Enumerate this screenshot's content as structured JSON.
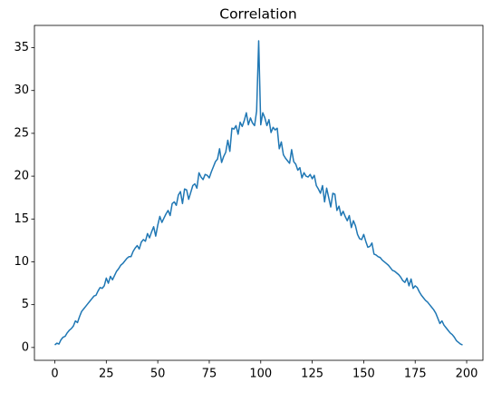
{
  "chart_data": {
    "type": "line",
    "title": "Correlation",
    "color": "#1f77b4",
    "x": [
      0,
      1,
      2,
      3,
      4,
      5,
      6,
      7,
      8,
      9,
      10,
      11,
      12,
      13,
      14,
      15,
      16,
      17,
      18,
      19,
      20,
      21,
      22,
      23,
      24,
      25,
      26,
      27,
      28,
      29,
      30,
      31,
      32,
      33,
      34,
      35,
      36,
      37,
      38,
      39,
      40,
      41,
      42,
      43,
      44,
      45,
      46,
      47,
      48,
      49,
      50,
      51,
      52,
      53,
      54,
      55,
      56,
      57,
      58,
      59,
      60,
      61,
      62,
      63,
      64,
      65,
      66,
      67,
      68,
      69,
      70,
      71,
      72,
      73,
      74,
      75,
      76,
      77,
      78,
      79,
      80,
      81,
      82,
      83,
      84,
      85,
      86,
      87,
      88,
      89,
      90,
      91,
      92,
      93,
      94,
      95,
      96,
      97,
      98,
      99,
      100,
      101,
      102,
      103,
      104,
      105,
      106,
      107,
      108,
      109,
      110,
      111,
      112,
      113,
      114,
      115,
      116,
      117,
      118,
      119,
      120,
      121,
      122,
      123,
      124,
      125,
      126,
      127,
      128,
      129,
      130,
      131,
      132,
      133,
      134,
      135,
      136,
      137,
      138,
      139,
      140,
      141,
      142,
      143,
      144,
      145,
      146,
      147,
      148,
      149,
      150,
      151,
      152,
      153,
      154,
      155,
      156,
      157,
      158,
      159,
      160,
      161,
      162,
      163,
      164,
      165,
      166,
      167,
      168,
      169,
      170,
      171,
      172,
      173,
      174,
      175,
      176,
      177,
      178,
      179,
      180,
      181,
      182,
      183,
      184,
      185,
      186,
      187,
      188,
      189,
      190,
      191,
      192,
      193,
      194,
      195,
      196,
      197,
      198
    ],
    "values": [
      0.3,
      0.5,
      0.4,
      0.9,
      1.2,
      1.3,
      1.7,
      2.0,
      2.2,
      2.5,
      3.1,
      2.9,
      3.6,
      4.2,
      4.5,
      4.8,
      5.1,
      5.4,
      5.7,
      6.0,
      6.1,
      6.6,
      7.0,
      6.9,
      7.2,
      8.1,
      7.5,
      8.3,
      7.9,
      8.4,
      8.9,
      9.2,
      9.6,
      9.8,
      10.1,
      10.4,
      10.6,
      10.6,
      11.2,
      11.6,
      11.9,
      11.5,
      12.3,
      12.6,
      12.4,
      13.3,
      12.8,
      13.5,
      14.1,
      13.0,
      14.3,
      15.3,
      14.6,
      15.1,
      15.6,
      16.0,
      15.4,
      16.8,
      17.0,
      16.6,
      17.8,
      18.2,
      16.8,
      18.5,
      18.4,
      17.3,
      18.1,
      18.9,
      19.1,
      18.6,
      20.4,
      19.9,
      19.6,
      20.2,
      20.1,
      19.8,
      20.5,
      21.1,
      21.7,
      22.0,
      23.2,
      21.6,
      22.3,
      22.8,
      24.2,
      22.9,
      25.6,
      25.5,
      25.9,
      24.9,
      26.3,
      25.8,
      26.5,
      27.4,
      26.0,
      26.8,
      26.2,
      25.9,
      27.6,
      35.8,
      26.0,
      27.4,
      26.8,
      25.9,
      26.6,
      25.1,
      25.7,
      25.4,
      25.6,
      23.2,
      24.0,
      22.5,
      22.1,
      21.8,
      21.5,
      23.1,
      21.7,
      21.4,
      20.7,
      21.0,
      19.8,
      20.4,
      20.0,
      19.9,
      20.2,
      19.7,
      20.1,
      18.9,
      18.5,
      18.0,
      18.9,
      17.0,
      18.6,
      17.5,
      16.4,
      18.0,
      17.9,
      16.0,
      16.5,
      15.4,
      15.9,
      15.3,
      14.8,
      15.4,
      14.0,
      14.8,
      14.2,
      13.2,
      12.7,
      12.6,
      13.2,
      12.4,
      11.7,
      11.8,
      12.2,
      10.9,
      10.8,
      10.6,
      10.5,
      10.2,
      10.0,
      9.8,
      9.6,
      9.3,
      9.0,
      8.9,
      8.7,
      8.5,
      8.2,
      7.8,
      7.6,
      8.1,
      7.2,
      8.0,
      6.9,
      7.2,
      7.0,
      6.5,
      6.1,
      5.8,
      5.5,
      5.3,
      5.0,
      4.7,
      4.4,
      4.0,
      3.4,
      2.8,
      3.1,
      2.6,
      2.3,
      2.0,
      1.7,
      1.5,
      1.2,
      0.8,
      0.6,
      0.4,
      0.3
    ],
    "xlim": [
      -9.9,
      207.9
    ],
    "xticks": [
      0,
      25,
      50,
      75,
      100,
      125,
      150,
      175,
      200
    ],
    "ylim": [
      -1.5,
      37.6
    ],
    "yticks": [
      0,
      5,
      10,
      15,
      20,
      25,
      30,
      35
    ],
    "grid": false
  }
}
